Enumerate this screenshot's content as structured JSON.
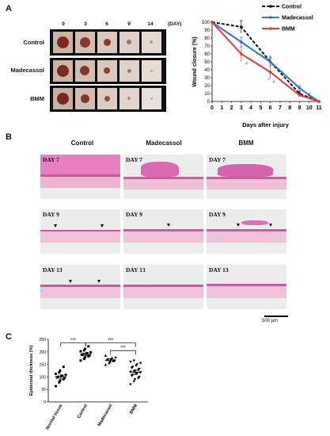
{
  "panel_a": {
    "letter": "A",
    "day_header": [
      "0",
      "3",
      "6",
      "9",
      "14"
    ],
    "day_unit": "(DAY)",
    "rows": [
      "Control",
      "Madecassol",
      "BMM"
    ]
  },
  "panel_b": {
    "letter": "B",
    "columns": [
      "Control",
      "Madecassol",
      "BMM"
    ],
    "rows": [
      "DAY 7",
      "DAY 9",
      "DAY 13"
    ],
    "scale_label": "500 μm"
  },
  "panel_c": {
    "letter": "C"
  },
  "chart_data": [
    {
      "type": "line",
      "title": "",
      "xlabel": "Days after injury",
      "ylabel": "Wound closure (%)",
      "xlim": [
        0,
        11
      ],
      "ylim": [
        0,
        100
      ],
      "xticks": [
        "0",
        "1",
        "2",
        "3",
        "4",
        "5",
        "6",
        "7",
        "8",
        "9",
        "10",
        "11"
      ],
      "yticks": [
        "0",
        "10",
        "20",
        "30",
        "40",
        "50",
        "60",
        "70",
        "80",
        "90",
        "100"
      ],
      "legend_position": "top-right",
      "series": [
        {
          "name": "Control",
          "color": "#111111",
          "style": "dashed",
          "x": [
            0,
            3,
            6,
            9,
            11
          ],
          "y": [
            100,
            94,
            50,
            10,
            0
          ],
          "err": [
            0,
            8,
            5,
            3,
            0
          ]
        },
        {
          "name": "Madecassol",
          "color": "#2f78c4",
          "style": "solid",
          "x": [
            0,
            3,
            6,
            9,
            10,
            11
          ],
          "y": [
            100,
            75,
            50,
            17,
            8,
            0
          ],
          "err": [
            0,
            6,
            7,
            3,
            2,
            0
          ]
        },
        {
          "name": "BMM",
          "color": "#e03a30",
          "style": "solid",
          "x": [
            0,
            3,
            6,
            9,
            11
          ],
          "y": [
            100,
            60,
            37,
            8,
            0
          ],
          "err": [
            0,
            9,
            8,
            2,
            0
          ]
        }
      ],
      "annotations": [
        {
          "text": "*",
          "x": 3,
          "y": 48
        },
        {
          "text": ",",
          "x": 3.25,
          "y": 44
        },
        {
          "text": "#",
          "x": 3.55,
          "y": 46
        },
        {
          "text": "*",
          "x": 5.85,
          "y": 25
        },
        {
          "text": "#",
          "x": 6.35,
          "y": 23
        }
      ]
    },
    {
      "type": "scatter",
      "title": "",
      "xlabel": "",
      "ylabel": "Epidermal thickness (%)",
      "ylim": [
        0,
        250
      ],
      "yticks": [
        "0",
        "50",
        "100",
        "150",
        "200",
        "250"
      ],
      "categories": [
        "Normal tissue",
        "Control",
        "Madecassol",
        "BMM"
      ],
      "markers": [
        "circle",
        "square",
        "triangle",
        "inverted-triangle"
      ],
      "means": [
        100,
        190,
        167,
        118
      ],
      "errors": [
        8,
        6,
        5,
        8
      ],
      "points": [
        [
          63,
          78,
          85,
          90,
          95,
          98,
          100,
          102,
          105,
          108,
          112,
          118,
          125,
          140
        ],
        [
          165,
          172,
          178,
          182,
          185,
          188,
          190,
          192,
          195,
          198,
          202,
          206,
          212,
          222
        ],
        [
          148,
          155,
          160,
          163,
          166,
          168,
          170,
          172,
          175,
          178,
          185
        ],
        [
          70,
          82,
          90,
          95,
          100,
          105,
          108,
          112,
          115,
          118,
          120,
          122,
          125,
          128,
          132,
          136,
          140,
          145,
          150,
          155,
          160,
          165
        ]
      ],
      "significance": [
        {
          "from": 0,
          "to": 1,
          "label": "***"
        },
        {
          "from": 1,
          "to": 3,
          "label": "***"
        },
        {
          "from": 2,
          "to": 3,
          "label": "***"
        }
      ]
    }
  ]
}
